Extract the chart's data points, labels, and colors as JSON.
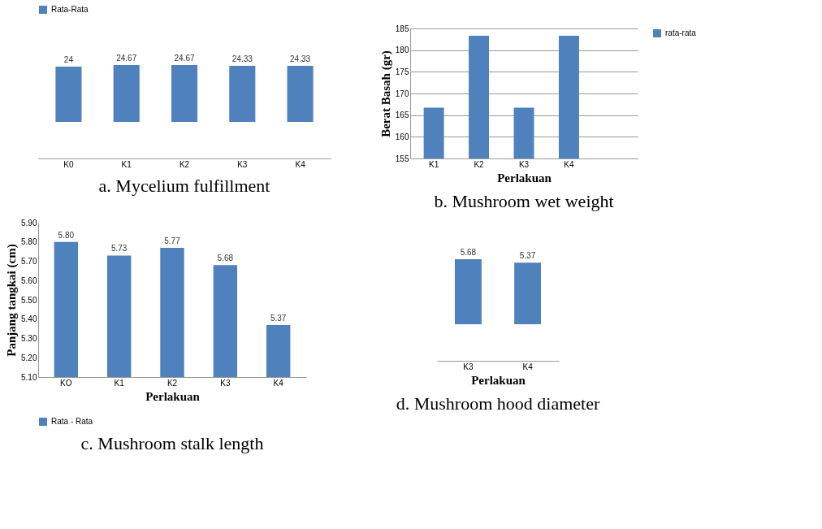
{
  "chart_data": [
    {
      "type": "bar",
      "title": "a. Mycelium fulfillment",
      "categories": [
        "K0",
        "K1",
        "K2",
        "K3",
        "K4"
      ],
      "series": [
        {
          "name": "Rata-Rata",
          "color": "#4f81bd",
          "values": [
            24,
            24.67,
            24.67,
            24.33,
            24.33
          ]
        }
      ],
      "data_labels": true,
      "legend": "top",
      "grid": false,
      "tick_labels": "x"
    },
    {
      "type": "bar",
      "title": "b. Mushroom wet weight",
      "xlabel": "Perlakuan",
      "ylabel": "Berat Basah  (gr)",
      "categories": [
        "K1",
        "K2",
        "K3",
        "K4",
        null
      ],
      "series": [
        {
          "name": "rata-rata",
          "color": "#4f81bd",
          "values": [
            166.7,
            183.3,
            166.7,
            183.3,
            null
          ]
        }
      ],
      "ylim": [
        155,
        185
      ],
      "yticks": [
        155,
        160,
        165,
        170,
        175,
        180,
        185
      ],
      "grid": "y",
      "legend": "right"
    },
    {
      "type": "bar",
      "title": "c. Mushroom stalk length",
      "xlabel": "Perlakuan",
      "ylabel": "Panjang tangkai (cm)",
      "categories": [
        "KO",
        "K1",
        "K2",
        "K3",
        "K4"
      ],
      "series": [
        {
          "name": "Rata - Rata",
          "color": "#4f81bd",
          "values": [
            5.8,
            5.73,
            5.77,
            5.68,
            5.37
          ],
          "value_labels": [
            "5.80",
            "5.73",
            "5.77",
            "5.68",
            "5.37"
          ]
        }
      ],
      "ylim": [
        5.1,
        5.9
      ],
      "yticks": [
        {
          "value": 5.1,
          "label": "5.10"
        },
        {
          "value": 5.2,
          "label": "5.20"
        },
        {
          "value": 5.3,
          "label": "5.30"
        },
        {
          "value": 5.4,
          "label": "5.40"
        },
        {
          "value": 5.5,
          "label": "5.50"
        },
        {
          "value": 5.6,
          "label": "5.60"
        },
        {
          "value": 5.7,
          "label": "5.70"
        },
        {
          "value": 5.8,
          "label": "5.80"
        },
        {
          "value": 5.9,
          "label": "5.90"
        }
      ],
      "grid": false,
      "legend": "bottom"
    },
    {
      "type": "bar",
      "title": "d. Mushroom hood diameter",
      "xlabel": "Perlakuan",
      "categories": [
        "K3",
        "K4"
      ],
      "series": [
        {
          "color": "#4f81bd",
          "values": [
            5.68,
            5.37
          ]
        }
      ],
      "data_labels": true,
      "legend": false,
      "grid": false,
      "tick_labels": "x"
    }
  ]
}
